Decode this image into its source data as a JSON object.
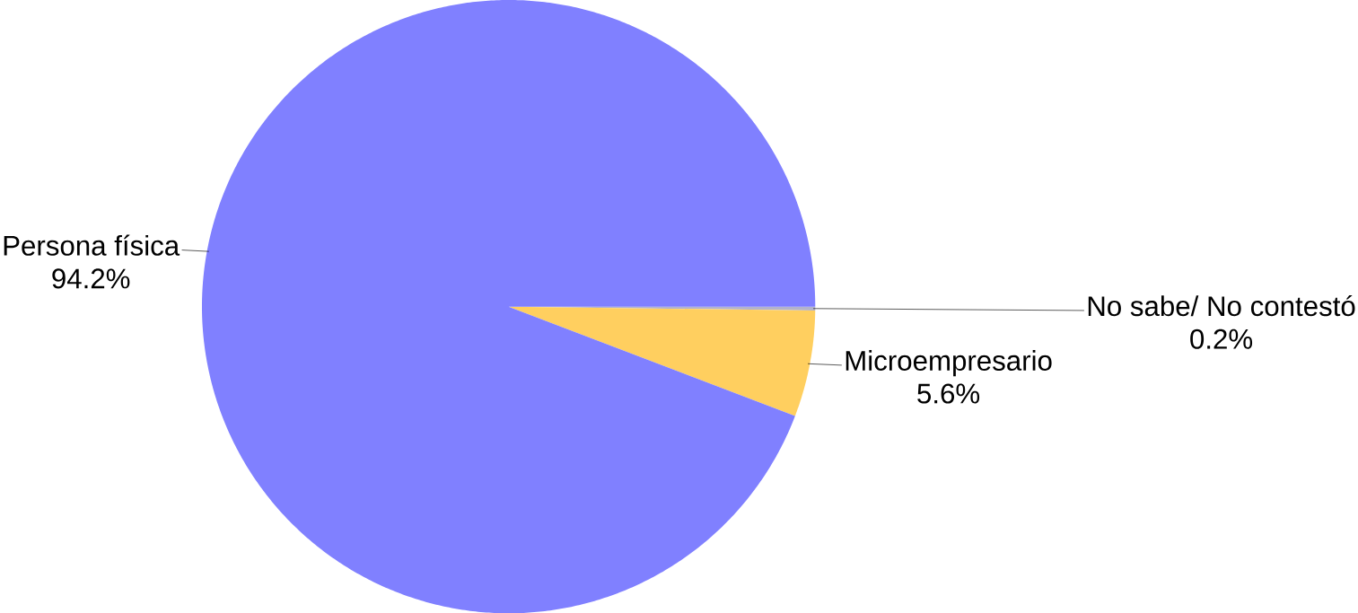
{
  "chart_data": {
    "type": "pie",
    "categories": [
      "No sabe/ No contestó",
      "Microempresario",
      "Persona física"
    ],
    "values": [
      0.2,
      5.6,
      94.2
    ],
    "value_labels": [
      "0.2%",
      "5.6%",
      "94.2%"
    ],
    "colors": [
      "#b3b3cc",
      "#ffcf5f",
      "#8080ff"
    ]
  }
}
